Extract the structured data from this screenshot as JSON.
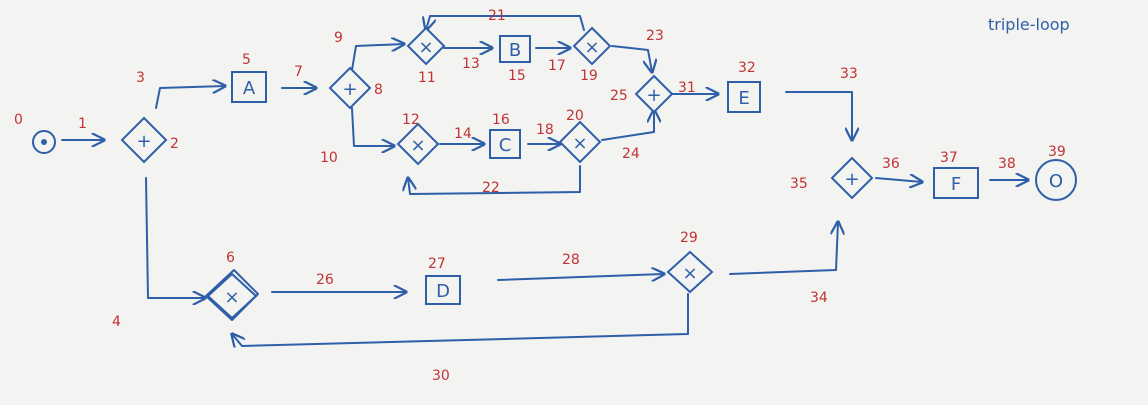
{
  "title": "triple-loop",
  "colors": {
    "ink": "#2f5fa8",
    "numbers": "#c23333",
    "paper": "#f3f3f1"
  },
  "nodes": {
    "start_event": {
      "number": "0"
    },
    "gateway_2": {
      "number": "2",
      "symbol": "+"
    },
    "task_A": {
      "label": "A",
      "number": "5"
    },
    "gateway_8": {
      "number": "8",
      "symbol": "+"
    },
    "xor_11": {
      "number": "11",
      "symbol": "×"
    },
    "task_B": {
      "label": "B",
      "number": "15"
    },
    "xor_19": {
      "number": "19",
      "symbol": "×"
    },
    "xor_12": {
      "number": "12",
      "symbol": "×"
    },
    "task_C": {
      "label": "C",
      "number": "16"
    },
    "xor_20": {
      "number": "20",
      "symbol": "×"
    },
    "gateway_25": {
      "number": "25",
      "symbol": "+"
    },
    "task_E": {
      "label": "E",
      "number": "32"
    },
    "gateway_35": {
      "number": "35",
      "symbol": "+"
    },
    "task_F": {
      "label": "F",
      "number": "37"
    },
    "end_event": {
      "label": "O",
      "number": "39"
    },
    "xor_6": {
      "number": "6",
      "symbol": "×"
    },
    "task_D": {
      "label": "D",
      "number": "27"
    },
    "xor_29": {
      "number": "29",
      "symbol": "×"
    }
  },
  "edges": {
    "e1": "1",
    "e3": "3",
    "e4": "4",
    "e7": "7",
    "e9": "9",
    "e10": "10",
    "e13": "13",
    "e14": "14",
    "e17": "17",
    "e18": "18",
    "e21": "21",
    "e22": "22",
    "e23": "23",
    "e24": "24",
    "e26": "26",
    "e28": "28",
    "e30": "30",
    "e31": "31",
    "e33": "33",
    "e34": "34",
    "e36": "36",
    "e38": "38"
  }
}
